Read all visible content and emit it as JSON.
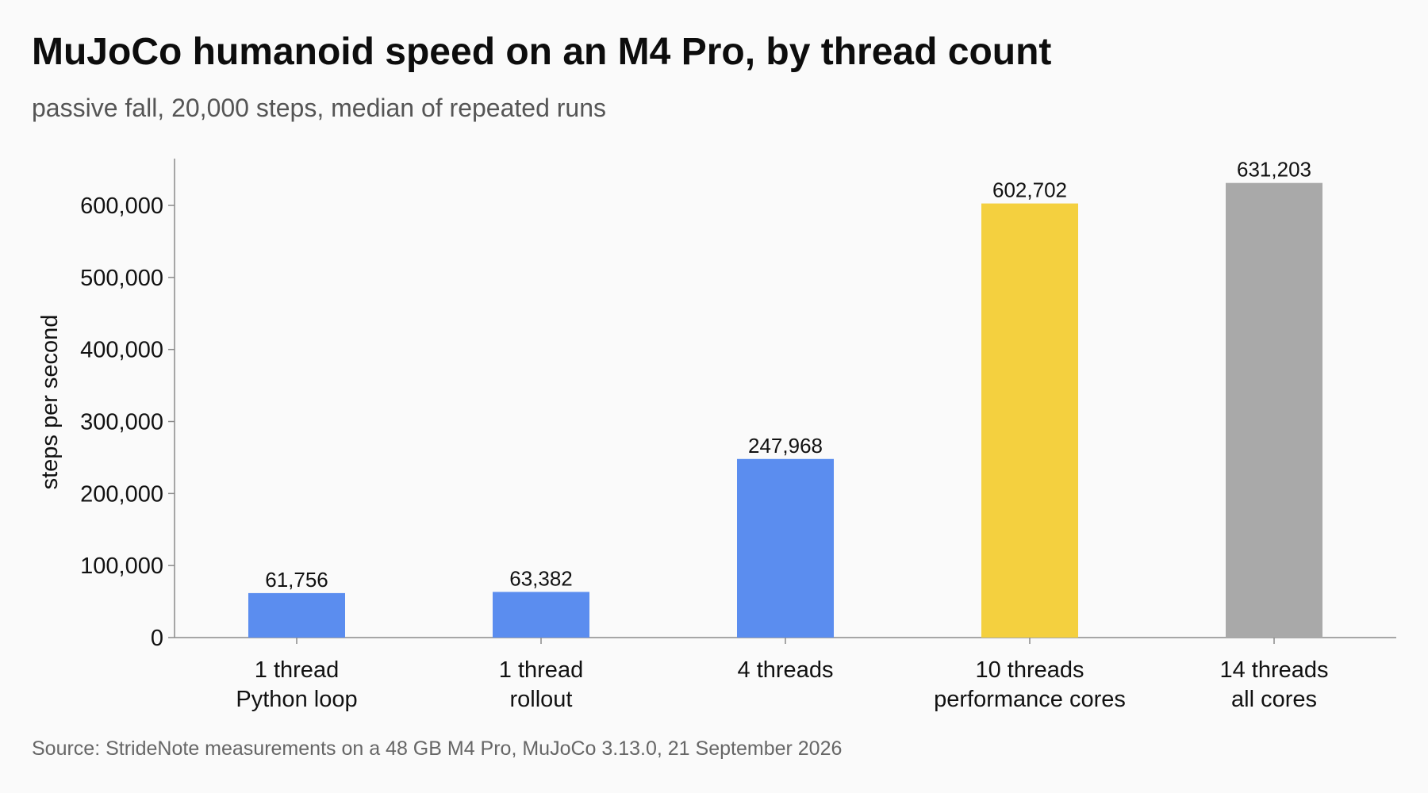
{
  "header": {
    "title": "MuJoCo humanoid speed on an M4 Pro, by thread count",
    "subtitle": "passive fall, 20,000 steps, median of repeated runs"
  },
  "footer": {
    "source": "Source: StrideNote measurements on a 48 GB M4 Pro, MuJoCo 3.13.0, 21 September 2026"
  },
  "chart_data": {
    "type": "bar",
    "title": "MuJoCo humanoid speed on an M4 Pro, by thread count",
    "subtitle": "passive fall, 20,000 steps, median of repeated runs",
    "xlabel": "",
    "ylabel": "steps per second",
    "ylim": [
      0,
      665000
    ],
    "yticks": [
      0,
      100000,
      200000,
      300000,
      400000,
      500000,
      600000
    ],
    "ytick_labels": [
      "0",
      "100,000",
      "200,000",
      "300,000",
      "400,000",
      "500,000",
      "600,000"
    ],
    "grid": false,
    "legend": "none",
    "categories": [
      [
        "1 thread",
        "Python loop"
      ],
      [
        "1 thread",
        "rollout"
      ],
      [
        "4 threads"
      ],
      [
        "10 threads",
        "performance cores"
      ],
      [
        "14 threads",
        "all cores"
      ]
    ],
    "values": [
      61756,
      63382,
      247968,
      602702,
      631203
    ],
    "value_labels": [
      "61,756",
      "63,382",
      "247,968",
      "602,702",
      "631,203"
    ],
    "colors": [
      "#5b8def",
      "#5b8def",
      "#5b8def",
      "#f4d03f",
      "#a9a9a9"
    ],
    "axis_color": "#8a8a8a"
  }
}
